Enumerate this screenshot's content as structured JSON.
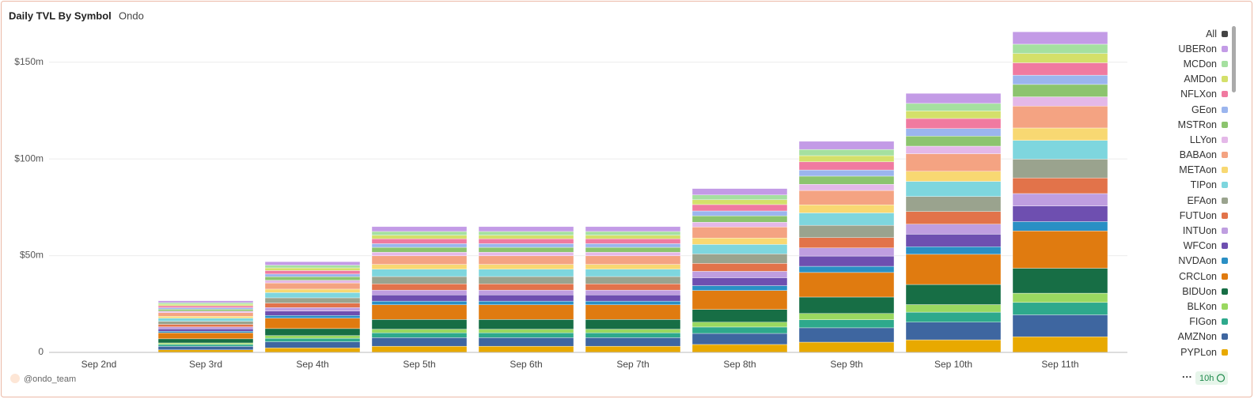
{
  "chart_data": {
    "type": "stacked_bar",
    "title": "Daily TVL By Symbol",
    "subtitle": "Ondo",
    "categories": [
      "Sep 2nd",
      "Sep 3rd",
      "Sep 4th",
      "Sep 5th",
      "Sep 6th",
      "Sep 7th",
      "Sep 8th",
      "Sep 9th",
      "Sep 10th",
      "Sep 11th"
    ],
    "ylim": [
      0,
      165
    ],
    "yticks": [
      0,
      {
        "value": 50,
        "label": "$50m"
      },
      {
        "value": 100,
        "label": "$100m"
      },
      {
        "value": 150,
        "label": "$150m"
      }
    ],
    "grid": true,
    "legend_all": "All",
    "legend_all_color": "#444444",
    "series": [
      {
        "name": "UBERon",
        "color": "#c39be6",
        "values": [
          0.01,
          1.0,
          1.8,
          2.5,
          2.5,
          2.5,
          3.3,
          4.2,
          5.2,
          6.4
        ]
      },
      {
        "name": "MCDon",
        "color": "#a5e0a0",
        "values": [
          0.01,
          0.8,
          1.4,
          1.9,
          1.9,
          1.9,
          2.5,
          3.2,
          3.9,
          4.8
        ]
      },
      {
        "name": "AMDon",
        "color": "#d4e06a",
        "values": [
          0.01,
          0.8,
          1.4,
          1.9,
          1.9,
          1.9,
          2.5,
          3.2,
          3.9,
          4.8
        ]
      },
      {
        "name": "NFLXon",
        "color": "#f07aa0",
        "values": [
          0.01,
          1.0,
          1.8,
          2.5,
          2.5,
          2.5,
          3.3,
          4.2,
          5.2,
          6.4
        ]
      },
      {
        "name": "GEon",
        "color": "#9bb5ee",
        "values": [
          0.01,
          0.8,
          1.4,
          1.9,
          1.9,
          1.9,
          2.5,
          3.2,
          3.9,
          4.8
        ]
      },
      {
        "name": "MSTRon",
        "color": "#8cc46e",
        "values": [
          0.01,
          1.0,
          1.8,
          2.5,
          2.5,
          2.5,
          3.3,
          4.2,
          5.2,
          6.4
        ]
      },
      {
        "name": "LLYon",
        "color": "#e4b8e8",
        "values": [
          0.01,
          0.8,
          1.4,
          1.9,
          1.9,
          1.9,
          2.5,
          3.2,
          3.9,
          4.8
        ]
      },
      {
        "name": "BABAon",
        "color": "#f4a382",
        "values": [
          0.02,
          1.8,
          3.2,
          4.4,
          4.4,
          4.4,
          5.7,
          7.4,
          9.1,
          11.3
        ]
      },
      {
        "name": "METAon",
        "color": "#f8d872",
        "values": [
          0.01,
          1.0,
          1.8,
          2.5,
          2.5,
          2.5,
          3.3,
          4.2,
          5.2,
          6.4
        ]
      },
      {
        "name": "TIPon",
        "color": "#7ed6de",
        "values": [
          0.02,
          1.6,
          2.7,
          3.8,
          3.8,
          3.8,
          4.9,
          6.4,
          7.8,
          9.7
        ]
      },
      {
        "name": "EFAon",
        "color": "#9aa38e",
        "values": [
          0.02,
          1.6,
          2.7,
          3.8,
          3.8,
          3.8,
          4.9,
          6.4,
          7.8,
          9.7
        ]
      },
      {
        "name": "FUTUon",
        "color": "#e2734a",
        "values": [
          0.02,
          1.3,
          2.3,
          3.2,
          3.2,
          3.2,
          4.1,
          5.3,
          6.5,
          8.1
        ]
      },
      {
        "name": "INTUon",
        "color": "#bf9ee0",
        "values": [
          0.01,
          1.0,
          1.8,
          2.5,
          2.5,
          2.5,
          3.3,
          4.2,
          5.2,
          6.4
        ]
      },
      {
        "name": "WFCon",
        "color": "#6e4fb0",
        "values": [
          0.02,
          1.3,
          2.3,
          3.2,
          3.2,
          3.2,
          4.1,
          5.3,
          6.5,
          8.1
        ]
      },
      {
        "name": "NVDAon",
        "color": "#2a8fc4",
        "values": [
          0.01,
          0.8,
          1.4,
          1.9,
          1.9,
          1.9,
          2.5,
          3.2,
          3.9,
          4.8
        ]
      },
      {
        "name": "CRCLon",
        "color": "#e07b10",
        "values": [
          0.04,
          3.1,
          5.4,
          7.6,
          7.6,
          7.6,
          9.8,
          12.7,
          15.6,
          19.3
        ]
      },
      {
        "name": "BIDUon",
        "color": "#176e45",
        "values": [
          0.02,
          2.1,
          3.6,
          5.0,
          5.0,
          5.0,
          6.6,
          8.5,
          10.4,
          12.9
        ]
      },
      {
        "name": "BLKon",
        "color": "#9ad860",
        "values": [
          0.01,
          0.8,
          1.4,
          1.9,
          1.9,
          1.9,
          2.5,
          3.2,
          3.9,
          4.8
        ]
      },
      {
        "name": "FIGon",
        "color": "#2ea98c",
        "values": [
          0.01,
          1.0,
          1.8,
          2.5,
          2.5,
          2.5,
          3.3,
          4.2,
          5.2,
          6.4
        ]
      },
      {
        "name": "AMZNon",
        "color": "#3e66a0",
        "values": [
          0.02,
          1.8,
          3.2,
          4.4,
          4.4,
          4.4,
          5.7,
          7.4,
          9.1,
          11.3
        ]
      },
      {
        "name": "PYPLon",
        "color": "#e8a900",
        "values": [
          0.02,
          1.3,
          2.3,
          3.2,
          3.2,
          3.2,
          4.1,
          5.3,
          6.5,
          8.1
        ]
      }
    ]
  },
  "footer": {
    "source": "@ondo_team",
    "refresh": "10h"
  }
}
